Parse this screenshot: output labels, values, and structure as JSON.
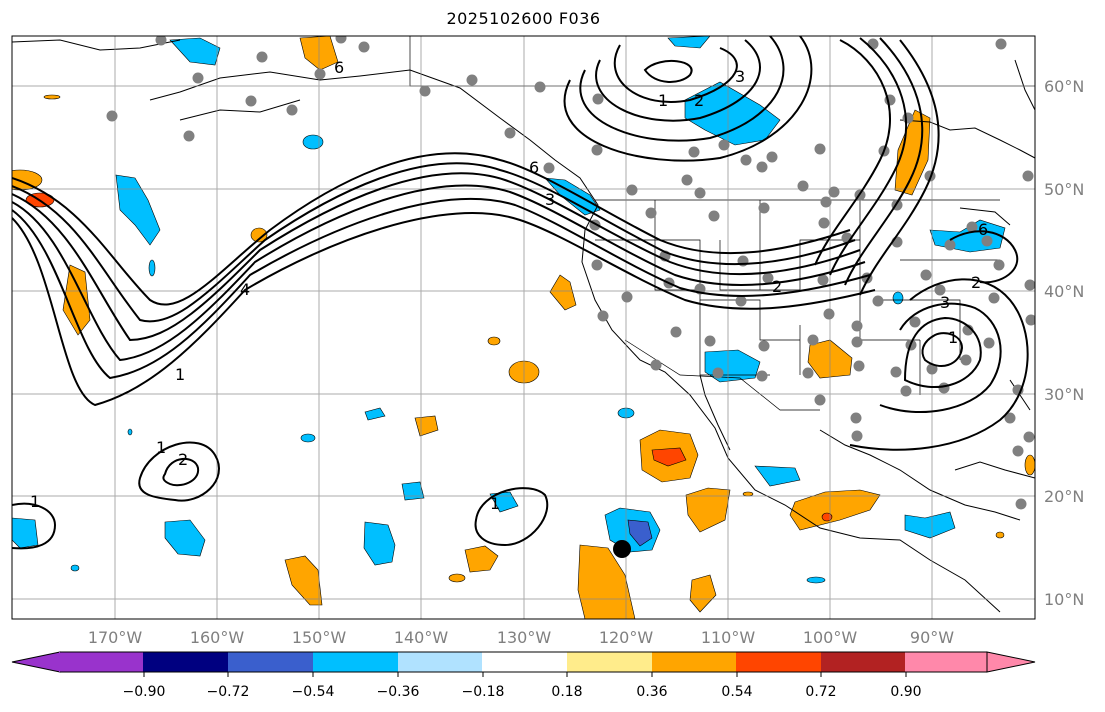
{
  "title": "2025102600 F036",
  "longitude_labels": [
    "170°W",
    "160°W",
    "150°W",
    "140°W",
    "130°W",
    "120°W",
    "110°W",
    "100°W",
    "90°W"
  ],
  "latitude_labels": [
    "60°N",
    "50°N",
    "40°N",
    "30°N",
    "20°N",
    "10°N"
  ],
  "colorbar": {
    "colors": [
      "#9933cc",
      "#000080",
      "#3a5fcd",
      "#00bfff",
      "#b0e2ff",
      "#ffffff",
      "#ffec8b",
      "#ffa500",
      "#ff4500",
      "#b22222",
      "#ff88aa",
      "#ff88aa"
    ],
    "ticks": [
      "−0.90",
      "−0.72",
      "−0.54",
      "−0.36",
      "−0.18",
      "0.18",
      "0.36",
      "0.54",
      "0.72",
      "0.90"
    ]
  },
  "contour_labels": {
    "c1": "6",
    "c2": "1",
    "c3": "2",
    "c4": "3",
    "c5": "6",
    "c6": "3",
    "c7": "4",
    "c8": "1",
    "c9": "1",
    "c10": "2",
    "c11": "1",
    "c12": "1",
    "c13": "2",
    "c14": "2",
    "c15": "3",
    "c16": "1",
    "c17": "6"
  }
}
